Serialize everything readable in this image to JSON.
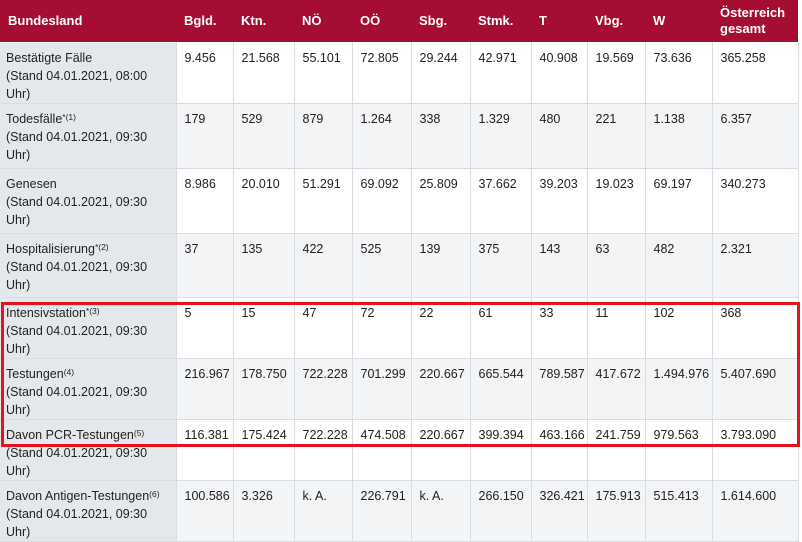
{
  "header": {
    "bundesland": "Bundesland",
    "cols": [
      "Bgld.",
      "Ktn.",
      "NÖ",
      "OÖ",
      "Sbg.",
      "Stmk.",
      "T",
      "Vbg.",
      "W"
    ],
    "total_line1": "Österreich",
    "total_line2": "gesamt"
  },
  "rows": [
    {
      "label": "Bestätigte Fälle",
      "sup": "",
      "stand": "(Stand 04.01.2021, 08:00 Uhr)",
      "values": [
        "9.456",
        "21.568",
        "55.101",
        "72.805",
        "29.244",
        "42.971",
        "40.908",
        "19.569",
        "73.636",
        "365.258"
      ]
    },
    {
      "label": "Todesfälle",
      "sup": "*(1)",
      "stand": "(Stand 04.01.2021, 09:30 Uhr)",
      "values": [
        "179",
        "529",
        "879",
        "1.264",
        "338",
        "1.329",
        "480",
        "221",
        "1.138",
        "6.357"
      ]
    },
    {
      "label": "Genesen",
      "sup": "",
      "stand": "(Stand 04.01.2021, 09:30 Uhr)",
      "values": [
        "8.986",
        "20.010",
        "51.291",
        "69.092",
        "25.809",
        "37.662",
        "39.203",
        "19.023",
        "69.197",
        "340.273"
      ]
    },
    {
      "label": "Hospitalisierung",
      "sup": "*(2)",
      "stand": "(Stand 04.01.2021, 09:30 Uhr)",
      "values": [
        "37",
        "135",
        "422",
        "525",
        "139",
        "375",
        "143",
        "63",
        "482",
        "2.321"
      ]
    },
    {
      "label": "Intensivstation",
      "sup": "*(3)",
      "stand": "(Stand 04.01.2021, 09:30 Uhr)",
      "values": [
        "5",
        "15",
        "47",
        "72",
        "22",
        "61",
        "33",
        "11",
        "102",
        "368"
      ]
    },
    {
      "label": "Testungen",
      "sup": "(4)",
      "stand": "(Stand 04.01.2021, 09:30 Uhr)",
      "values": [
        "216.967",
        "178.750",
        "722.228",
        "701.299",
        "220.667",
        "665.544",
        "789.587",
        "417.672",
        "1.494.976",
        "5.407.690"
      ]
    },
    {
      "label": "Davon PCR-Testungen",
      "sup": "(5)",
      "stand": "(Stand 04.01.2021, 09:30 Uhr)",
      "values": [
        "116.381",
        "175.424",
        "722.228",
        "474.508",
        "220.667",
        "399.394",
        "463.166",
        "241.759",
        "979.563",
        "3.793.090"
      ]
    },
    {
      "label": "Davon Antigen-Testungen",
      "sup": "(6)",
      "stand": "(Stand 04.01.2021, 09:30 Uhr)",
      "values": [
        "100.586",
        "3.326",
        "k. A.",
        "226.791",
        "k. A.",
        "266.150",
        "326.421",
        "175.913",
        "515.413",
        "1.614.600"
      ]
    }
  ],
  "colors": {
    "header_bg": "#a50d32",
    "label_bg": "#e4e8ec",
    "highlight_border": "#e3141e"
  }
}
